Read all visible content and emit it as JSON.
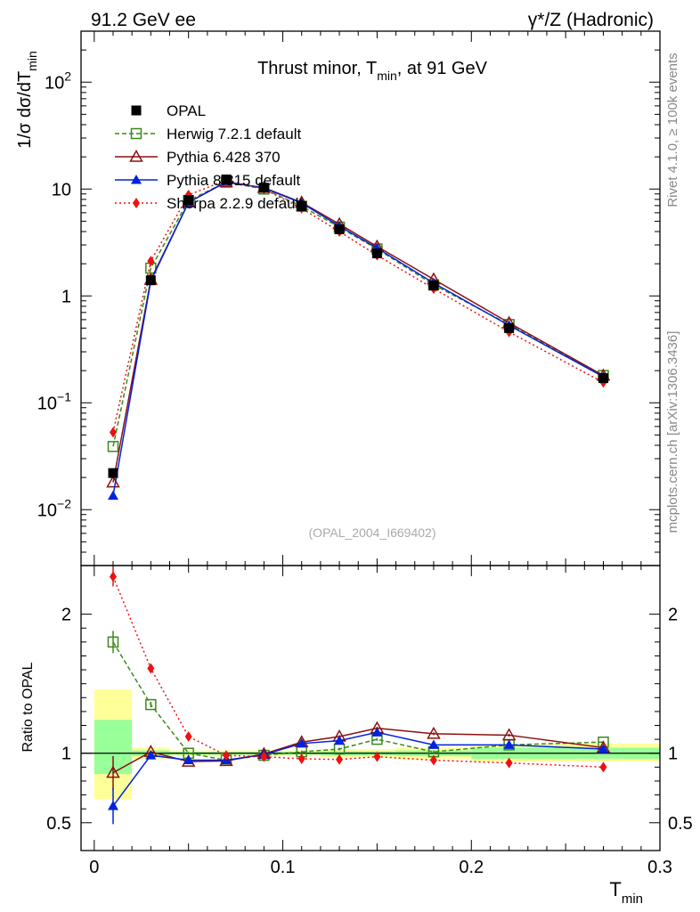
{
  "header": {
    "left": "91.2 GeV ee",
    "right": "γ*/Z (Hadronic)"
  },
  "side_labels": {
    "rivet": "Rivet 4.1.0, ≥ 100k events",
    "mcplots": "mcplots.cern.ch [arXiv:1306.3436]"
  },
  "chart_data": [
    {
      "type": "scatter",
      "panel": "main",
      "title": "Thrust minor, T_min, at 91 GeV",
      "title_main": "Thrust minor, T",
      "title_sub": "min",
      "title_tail": ", at 91 GeV",
      "ylabel_main": "1/σ  dσ/dT",
      "ylabel_sub": "min",
      "yscale": "log",
      "ylim": [
        0.003,
        300
      ],
      "xlim": [
        -0.007,
        0.3
      ],
      "yticks": [
        {
          "value": 0.01,
          "base": "10",
          "exp": "−2"
        },
        {
          "value": 0.1,
          "base": "10",
          "exp": "−1"
        },
        {
          "value": 1,
          "base": "1",
          "exp": ""
        },
        {
          "value": 10,
          "base": "10",
          "exp": ""
        },
        {
          "value": 100,
          "base": "10",
          "exp": "2"
        }
      ],
      "watermark": "(OPAL_2004_I669402)",
      "x": [
        0.01,
        0.03,
        0.05,
        0.07,
        0.09,
        0.11,
        0.13,
        0.15,
        0.18,
        0.22,
        0.27
      ],
      "series": [
        {
          "name": "OPAL",
          "color": "#000000",
          "marker": "square-filled",
          "line": "none",
          "values": [
            0.022,
            1.4,
            7.9,
            12.3,
            10.3,
            6.9,
            4.2,
            2.5,
            1.25,
            0.5,
            0.17
          ],
          "err": [
            0.002,
            0.08,
            0.2,
            0.3,
            0.25,
            0.15,
            0.1,
            0.06,
            0.03,
            0.015,
            0.006
          ]
        },
        {
          "name": "Herwig 7.2.1 default",
          "color": "#3a8a1a",
          "marker": "square-open",
          "line": "dashed",
          "values": [
            0.039,
            1.82,
            7.8,
            11.6,
            10.0,
            6.9,
            4.4,
            2.75,
            1.27,
            0.54,
            0.18
          ]
        },
        {
          "name": "Pythia 6.428 370",
          "color": "#8b1010",
          "marker": "triangle-open",
          "line": "solid",
          "values": [
            0.018,
            1.42,
            7.5,
            11.6,
            10.3,
            7.5,
            4.7,
            2.9,
            1.43,
            0.56,
            0.18
          ]
        },
        {
          "name": "Pythia 8.315 default",
          "color": "#0022dd",
          "marker": "triangle-filled",
          "line": "solid",
          "values": [
            0.0135,
            1.38,
            7.5,
            11.7,
            10.2,
            7.4,
            4.5,
            2.8,
            1.32,
            0.53,
            0.175
          ]
        },
        {
          "name": "Sherpa 2.2.9 default",
          "color": "#ee1111",
          "marker": "diamond-filled",
          "line": "dotted",
          "values": [
            0.053,
            2.12,
            8.8,
            12.1,
            10.0,
            6.6,
            4.0,
            2.4,
            1.17,
            0.46,
            0.155
          ]
        }
      ]
    },
    {
      "type": "scatter",
      "panel": "ratio",
      "ylabel": "Ratio to OPAL",
      "xlabel_main": "T",
      "xlabel_sub": "min",
      "ylim": [
        0.3,
        2.35
      ],
      "yticks": [
        0.5,
        1,
        2
      ],
      "ytick_labels": [
        "0.5",
        "1",
        "2"
      ],
      "xticks": [
        0,
        0.1,
        0.2,
        0.3
      ],
      "xtick_labels": [
        "0",
        "0.1",
        "0.2",
        "0.3"
      ],
      "bins": [
        {
          "lo": 0.0,
          "hi": 0.02,
          "yellow": [
            0.67,
            1.46
          ],
          "green": [
            0.85,
            1.24
          ]
        },
        {
          "lo": 0.02,
          "hi": 0.04,
          "yellow": [
            0.96,
            1.04
          ],
          "green": [
            0.98,
            1.02
          ]
        },
        {
          "lo": 0.04,
          "hi": 0.06,
          "yellow": [
            0.98,
            1.02
          ],
          "green": [
            0.99,
            1.01
          ]
        },
        {
          "lo": 0.06,
          "hi": 0.08,
          "yellow": [
            0.98,
            1.02
          ],
          "green": [
            0.99,
            1.01
          ]
        },
        {
          "lo": 0.08,
          "hi": 0.1,
          "yellow": [
            0.98,
            1.02
          ],
          "green": [
            0.99,
            1.01
          ]
        },
        {
          "lo": 0.1,
          "hi": 0.12,
          "yellow": [
            0.98,
            1.02
          ],
          "green": [
            0.99,
            1.01
          ]
        },
        {
          "lo": 0.12,
          "hi": 0.14,
          "yellow": [
            0.97,
            1.03
          ],
          "green": [
            0.985,
            1.015
          ]
        },
        {
          "lo": 0.14,
          "hi": 0.16,
          "yellow": [
            0.97,
            1.03
          ],
          "green": [
            0.985,
            1.015
          ]
        },
        {
          "lo": 0.16,
          "hi": 0.2,
          "yellow": [
            0.96,
            1.04
          ],
          "green": [
            0.98,
            1.02
          ]
        },
        {
          "lo": 0.2,
          "hi": 0.24,
          "yellow": [
            0.94,
            1.06
          ],
          "green": [
            0.96,
            1.04
          ]
        },
        {
          "lo": 0.24,
          "hi": 0.3,
          "yellow": [
            0.94,
            1.07
          ],
          "green": [
            0.96,
            1.04
          ]
        }
      ],
      "x": [
        0.01,
        0.03,
        0.05,
        0.07,
        0.09,
        0.11,
        0.13,
        0.15,
        0.18,
        0.22,
        0.27
      ],
      "series": [
        {
          "name": "Herwig 7.2.1 default",
          "color": "#3a8a1a",
          "marker": "square-open",
          "line": "dashed",
          "values": [
            1.8,
            1.35,
            1.0,
            0.95,
            0.985,
            1.01,
            1.03,
            1.1,
            1.01,
            1.06,
            1.08
          ],
          "err": [
            0.08,
            0.02,
            0.01,
            0.01,
            0.01,
            0.01,
            0.01,
            0.01,
            0.01,
            0.01,
            0.01
          ]
        },
        {
          "name": "Pythia 6.428 370",
          "color": "#8b1010",
          "marker": "triangle-open",
          "line": "solid",
          "values": [
            0.86,
            1.01,
            0.94,
            0.945,
            0.995,
            1.08,
            1.12,
            1.18,
            1.14,
            1.13,
            1.04
          ],
          "err": [
            0.12,
            0.01,
            0.01,
            0.01,
            0.01,
            0.01,
            0.01,
            0.01,
            0.01,
            0.01,
            0.01
          ]
        },
        {
          "name": "Pythia 8.315 default",
          "color": "#0022dd",
          "marker": "triangle-filled",
          "line": "solid",
          "values": [
            0.62,
            0.985,
            0.95,
            0.95,
            0.99,
            1.07,
            1.09,
            1.15,
            1.06,
            1.06,
            1.03
          ],
          "err": [
            0.13,
            0.01,
            0.01,
            0.01,
            0.01,
            0.01,
            0.01,
            0.01,
            0.01,
            0.01,
            0.01
          ]
        },
        {
          "name": "Sherpa 2.2.9 default",
          "color": "#ee1111",
          "marker": "diamond-filled",
          "line": "dotted",
          "values": [
            2.27,
            1.61,
            1.12,
            0.985,
            0.975,
            0.96,
            0.955,
            0.975,
            0.95,
            0.93,
            0.9
          ],
          "err": [
            0.07,
            0.01,
            0.01,
            0.01,
            0.01,
            0.01,
            0.01,
            0.01,
            0.01,
            0.01,
            0.01
          ]
        }
      ]
    }
  ]
}
